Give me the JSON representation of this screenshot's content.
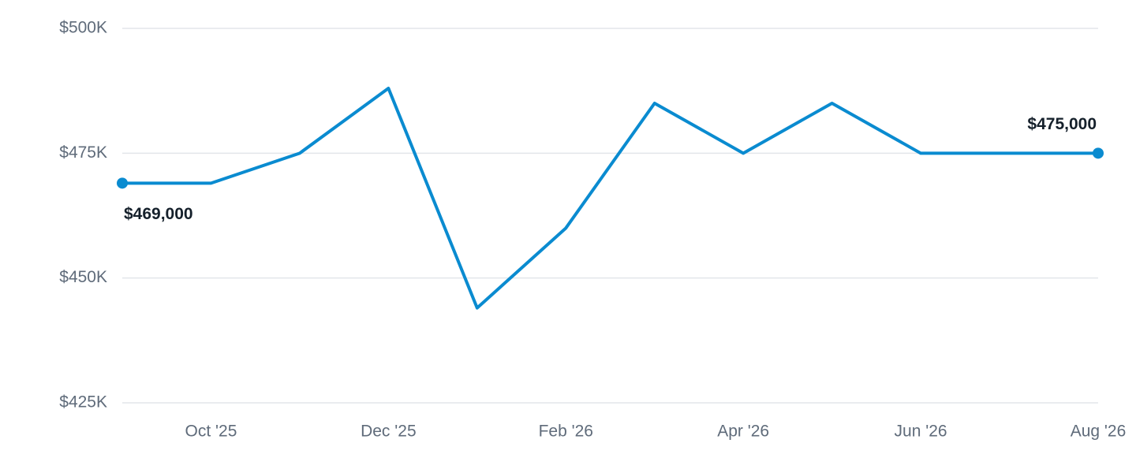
{
  "chart_data": {
    "type": "line",
    "categories": [
      null,
      "Oct '25",
      null,
      "Dec '25",
      null,
      "Feb '26",
      null,
      "Apr '26",
      null,
      "Jun '26",
      null,
      "Aug '26"
    ],
    "series": [
      {
        "color": "#0a8bd0",
        "values": [
          469000,
          469000,
          475000,
          488000,
          444000,
          460000,
          485000,
          475000,
          485000,
          475000,
          475000,
          475000
        ],
        "value_labels": [
          "$469,000",
          null,
          null,
          null,
          null,
          null,
          null,
          null,
          null,
          null,
          null,
          "$475,000"
        ]
      }
    ],
    "ylim": [
      425000,
      500000
    ],
    "yticks": [
      {
        "value": 425000,
        "label": "$425K"
      },
      {
        "value": 450000,
        "label": "$450K"
      },
      {
        "value": 475000,
        "label": "$475K"
      },
      {
        "value": 500000,
        "label": "$500K"
      }
    ],
    "grid": true
  }
}
